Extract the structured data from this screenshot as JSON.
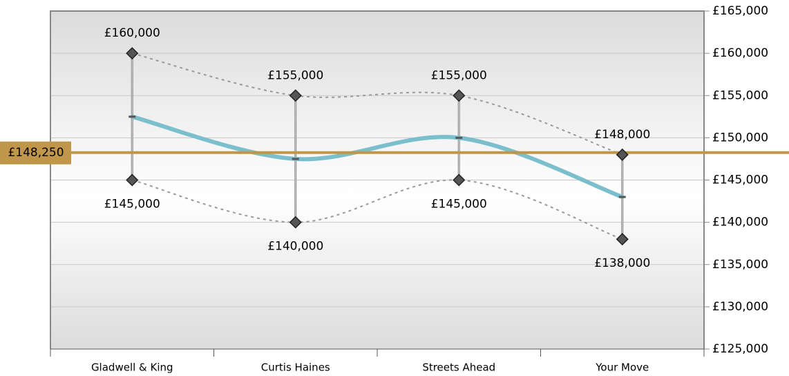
{
  "chart_data": {
    "type": "range",
    "categories": [
      "Gladwell & King",
      "Curtis Haines",
      "Streets Ahead",
      "Your Move"
    ],
    "series": [
      {
        "color": "#999999",
        "values": [
          160000,
          155000,
          155000,
          148000
        ],
        "value_labels": [
          "£160,000",
          "£155,000",
          "£155,000",
          "£148,000"
        ]
      },
      {
        "color": "#999999",
        "values": [
          145000,
          140000,
          145000,
          138000
        ],
        "value_labels": [
          "£145,000",
          "£140,000",
          "£145,000",
          "£138,000"
        ]
      },
      {
        "color": "#7bbfcc",
        "values": [
          152500,
          147500,
          150000,
          143000
        ]
      }
    ],
    "reference_line": {
      "value": 148250,
      "label": "£148,250",
      "color": "#c0974a"
    },
    "ylim": [
      125000,
      165000
    ],
    "yticks": [
      {
        "value": 125000,
        "label": "£125,000"
      },
      {
        "value": 130000,
        "label": "£130,000"
      },
      {
        "value": 135000,
        "label": "£135,000"
      },
      {
        "value": 140000,
        "label": "£140,000"
      },
      {
        "value": 145000,
        "label": "£145,000"
      },
      {
        "value": 150000,
        "label": "£150,000"
      },
      {
        "value": 155000,
        "label": "£155,000"
      },
      {
        "value": 160000,
        "label": "£160,000"
      },
      {
        "value": 165000,
        "label": "£165,000"
      }
    ],
    "grid": true
  }
}
